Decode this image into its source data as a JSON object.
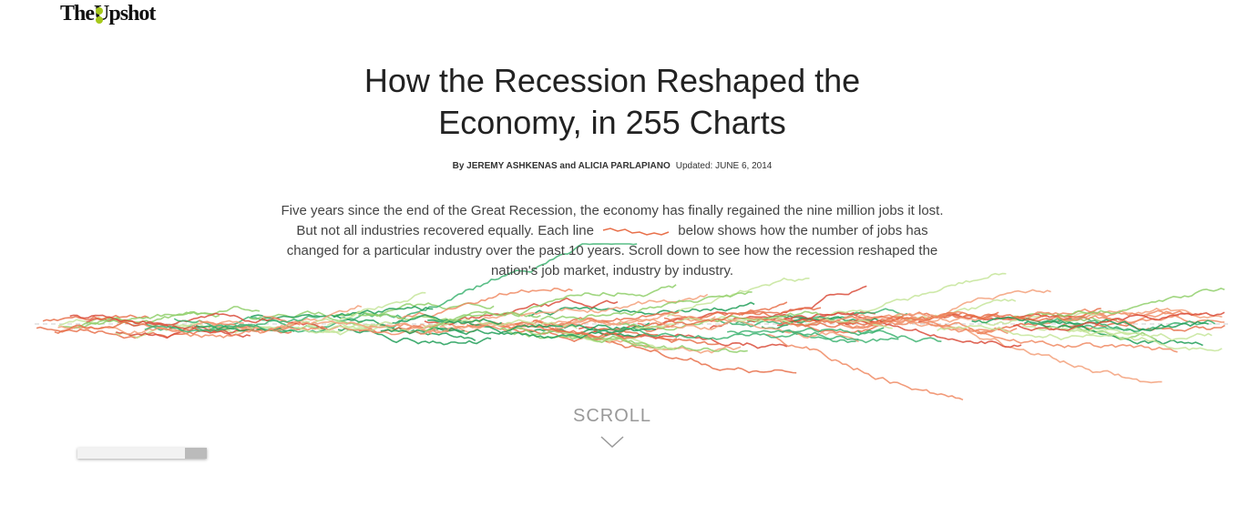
{
  "header": {
    "brand": "TheUpshot"
  },
  "article": {
    "title": "How the Recession Reshaped the Economy, in 255 Charts",
    "byline": "By JEREMY ASHKENAS and ALICIA PARLAPIANO",
    "updated": "Updated: JUNE 6, 2014",
    "intro_before": "Five years since the end of the Great Recession, the economy has finally regained the nine million jobs it lost. But not all industries recovered equally. Each line",
    "intro_after": "below shows how the number of jobs has changed for a particular industry over the past 10 years. Scroll down to see how the recession reshaped the nation's job market, industry by  industry.",
    "scroll": "SCROLL"
  }
}
